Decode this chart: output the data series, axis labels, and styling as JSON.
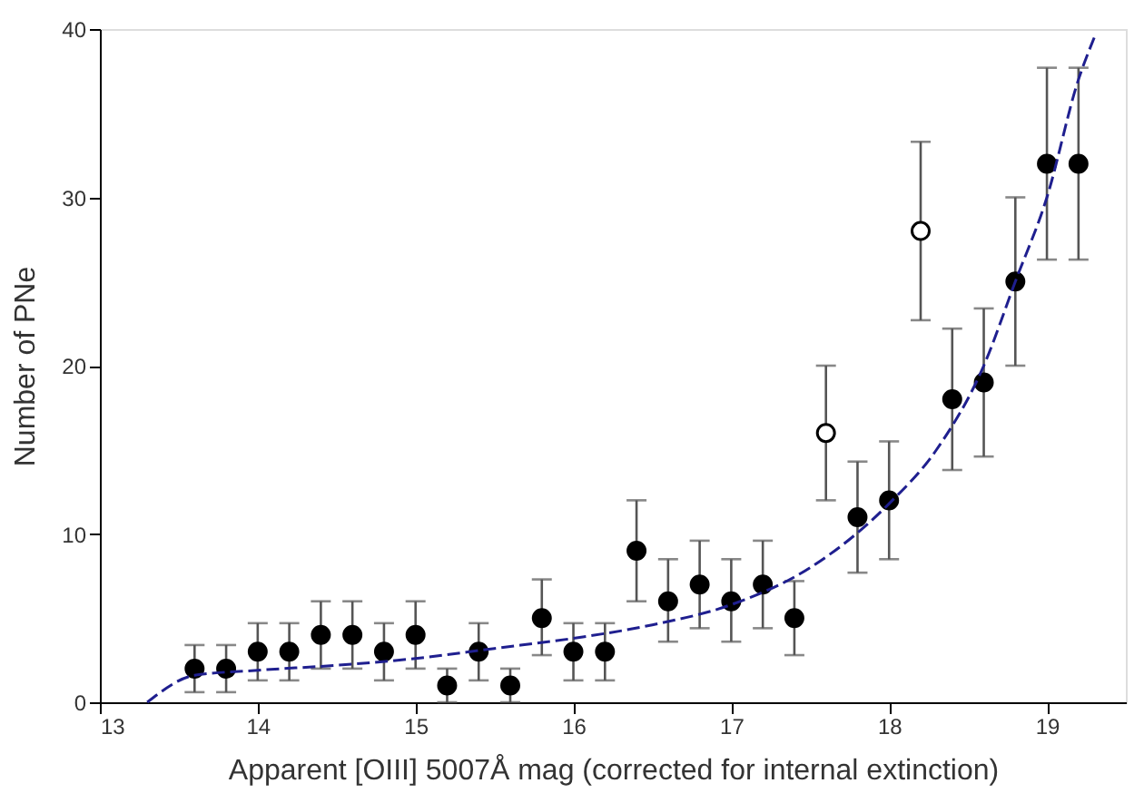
{
  "chart_data": {
    "type": "scatter",
    "xlabel": "Apparent [OIII] 5007Å mag (corrected for internal extinction)",
    "ylabel": "Number of PNe",
    "xlim": [
      13,
      19.5
    ],
    "xticks": [
      13,
      14,
      15,
      16,
      17,
      18,
      19
    ],
    "ylim": [
      0,
      40
    ],
    "yticks": [
      0,
      10,
      20,
      30,
      40
    ],
    "grid": false,
    "series": [
      {
        "color": "#000000",
        "marker": "circle",
        "x": [
          13.6,
          13.8,
          14.0,
          14.2,
          14.4,
          14.6,
          14.8,
          15.0,
          15.2,
          15.4,
          15.6,
          15.8,
          16.0,
          16.2,
          16.4,
          16.6,
          16.8,
          17.0,
          17.2,
          17.4,
          17.8,
          18.0,
          18.4,
          18.6,
          18.8,
          19.0,
          19.2
        ],
        "values": [
          2,
          2,
          3,
          3,
          4,
          4,
          3,
          4,
          1,
          3,
          1,
          5,
          3,
          3,
          9,
          6,
          7,
          6,
          7,
          5,
          11,
          12,
          18,
          19,
          25,
          32,
          32
        ],
        "errors": [
          [
            0.6,
            3.4
          ],
          [
            0.6,
            3.4
          ],
          [
            1.3,
            4.7
          ],
          [
            1.3,
            4.7
          ],
          [
            2,
            6
          ],
          [
            2,
            6
          ],
          [
            1.3,
            4.7
          ],
          [
            2,
            6
          ],
          [
            0,
            2
          ],
          [
            1.3,
            4.7
          ],
          [
            0,
            2
          ],
          [
            2.8,
            7.3
          ],
          [
            1.3,
            4.7
          ],
          [
            1.3,
            4.7
          ],
          [
            6,
            12
          ],
          [
            3.6,
            8.5
          ],
          [
            4.4,
            9.6
          ],
          [
            3.6,
            8.5
          ],
          [
            4.4,
            9.6
          ],
          [
            2.8,
            7.2
          ],
          [
            7.7,
            14.3
          ],
          [
            8.5,
            15.5
          ],
          [
            13.8,
            22.2
          ],
          [
            14.6,
            23.4
          ],
          [
            20,
            30
          ],
          [
            26.3,
            37.7
          ],
          [
            26.3,
            37.7
          ]
        ]
      },
      {
        "color": "#ffffff",
        "marker": "circle",
        "x": [
          17.6,
          18.2
        ],
        "values": [
          16,
          28
        ],
        "errors": [
          [
            12,
            20
          ],
          [
            22.7,
            33.3
          ]
        ]
      },
      {
        "type": "line",
        "color": "#1f1f8f",
        "line_style": "dashed",
        "marker": "none",
        "x": [
          13.3,
          13.6,
          14.0,
          14.5,
          15.0,
          15.5,
          16.0,
          16.5,
          17.0,
          17.5,
          18.0,
          18.3,
          18.6,
          18.8,
          19.0,
          19.2,
          19.3
        ],
        "values": [
          0,
          1.6,
          1.9,
          2.2,
          2.6,
          3.2,
          3.8,
          4.6,
          5.8,
          8,
          11.8,
          15,
          20,
          25,
          30,
          37,
          39.5
        ]
      }
    ]
  }
}
